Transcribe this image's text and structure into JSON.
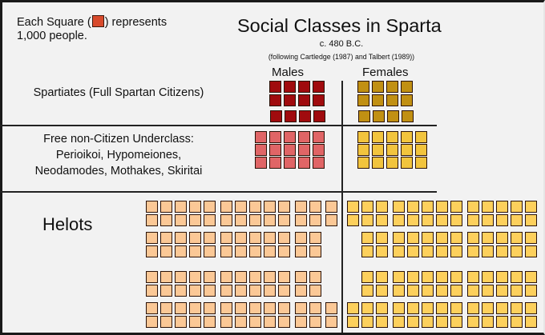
{
  "legend": {
    "prefix": "Each Square (",
    "suffix": ") represents",
    "line2": "1,000 people.",
    "swatch_color": "#d84a2c"
  },
  "header": {
    "title": "Social Classes in Sparta",
    "subtitle": "c. 480 B.C.",
    "source_note": "(following Cartledge (1987) and Talbert (1989))"
  },
  "columns": {
    "males": "Males",
    "females": "Females"
  },
  "rows": {
    "spartiates": {
      "label": "Spartiates (Full Spartan Citizens)"
    },
    "underclass": {
      "line1": "Free non-Citizen Underclass:",
      "line2": "Perioikoi, Hypomeiones,",
      "line3": "Neodamodes, Mothakes, Skiritai"
    },
    "helots": {
      "label": "Helots"
    }
  },
  "chart_data": {
    "type": "pictogram",
    "title": "Social Classes in Sparta",
    "subtitle": "c. 480 B.C.",
    "note": "(following Cartledge (1987) and Talbert (1989))",
    "unit": "Each square represents 1,000 people",
    "categories": [
      "Spartiates (Full Spartan Citizens)",
      "Free non-Citizen Underclass: Perioikoi, Hypomeiones, Neodamodes, Mothakes, Skiritai",
      "Helots"
    ],
    "series": [
      {
        "name": "Males",
        "squares": [
          12,
          15,
          100
        ],
        "people": [
          12000,
          15000,
          100000
        ]
      },
      {
        "name": "Females",
        "squares": [
          12,
          15,
          100
        ],
        "people": [
          12000,
          15000,
          100000
        ]
      }
    ],
    "colors": {
      "Spartiates": {
        "Males": "#a00b0e",
        "Females": "#c19013"
      },
      "Underclass": {
        "Males": "#e06566",
        "Females": "#f2c43d"
      },
      "Helots": {
        "Males": "#fbc896",
        "Females": "#fdd05c"
      }
    }
  }
}
